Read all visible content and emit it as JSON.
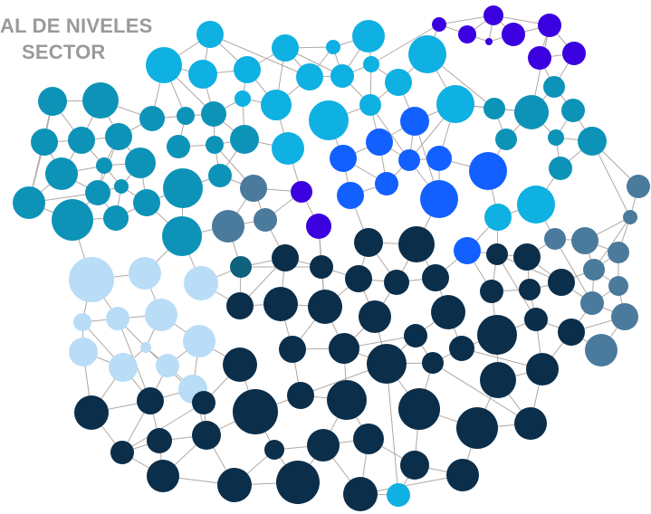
{
  "title": {
    "line1": "AL DE NIVELES",
    "line2": "SECTOR"
  },
  "colors": {
    "background": "#ffffff",
    "edge": "#b1a8a4",
    "title": "#9a9a9a",
    "navy": "#0b2e4a",
    "teal": "#0e93b8",
    "sky": "#0fb0e2",
    "royal": "#1260ff",
    "violet": "#3b00e0",
    "slate": "#4a7a9c",
    "pale": "#b9dcf7",
    "dark_teal": "#10617e"
  }
}
